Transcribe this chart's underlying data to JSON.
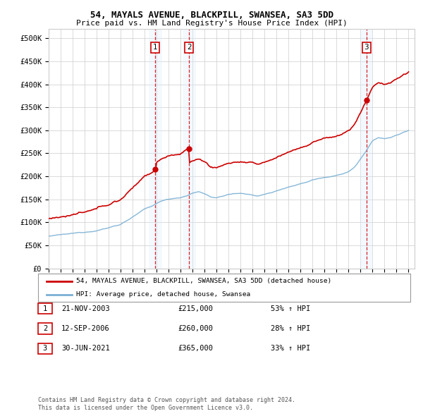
{
  "title": "54, MAYALS AVENUE, BLACKPILL, SWANSEA, SA3 5DD",
  "subtitle": "Price paid vs. HM Land Registry's House Price Index (HPI)",
  "ylim": [
    0,
    520000
  ],
  "ytick_vals": [
    0,
    50000,
    100000,
    150000,
    200000,
    250000,
    300000,
    350000,
    400000,
    450000,
    500000
  ],
  "ytick_labels": [
    "£0",
    "£50K",
    "£100K",
    "£150K",
    "£200K",
    "£250K",
    "£300K",
    "£350K",
    "£400K",
    "£450K",
    "£500K"
  ],
  "sale_dates_decimal": [
    2003.894,
    2006.703,
    2021.496
  ],
  "sale_prices": [
    215000,
    260000,
    365000
  ],
  "sale_labels": [
    "1",
    "2",
    "3"
  ],
  "legend_line1": "54, MAYALS AVENUE, BLACKPILL, SWANSEA, SA3 5DD (detached house)",
  "legend_line2": "HPI: Average price, detached house, Swansea",
  "table_entries": [
    {
      "label": "1",
      "date": "21-NOV-2003",
      "price": "£215,000",
      "pct": "53% ↑ HPI"
    },
    {
      "label": "2",
      "date": "12-SEP-2006",
      "price": "£260,000",
      "pct": "28% ↑ HPI"
    },
    {
      "label": "3",
      "date": "30-JUN-2021",
      "price": "£365,000",
      "pct": "33% ↑ HPI"
    }
  ],
  "footnote1": "Contains HM Land Registry data © Crown copyright and database right 2024.",
  "footnote2": "This data is licensed under the Open Government Licence v3.0.",
  "red_color": "#cc0000",
  "blue_color": "#7ab0d4",
  "shade_color": "#ddeeff",
  "background_color": "#ffffff",
  "grid_color": "#cccccc",
  "hpi_anchor_years": [
    1995.0,
    1996.0,
    1997.0,
    1998.0,
    1999.0,
    2000.0,
    2001.0,
    2002.0,
    2003.0,
    2003.5,
    2004.0,
    2004.5,
    2005.0,
    2005.5,
    2006.0,
    2006.5,
    2007.0,
    2007.5,
    2008.0,
    2008.5,
    2009.0,
    2009.5,
    2010.0,
    2010.5,
    2011.0,
    2011.5,
    2012.0,
    2012.5,
    2013.0,
    2013.5,
    2014.0,
    2014.5,
    2015.0,
    2015.5,
    2016.0,
    2016.5,
    2017.0,
    2017.5,
    2018.0,
    2018.5,
    2019.0,
    2019.5,
    2020.0,
    2020.5,
    2021.0,
    2021.5,
    2022.0,
    2022.5,
    2023.0,
    2023.5,
    2024.0,
    2024.5,
    2025.0
  ],
  "hpi_anchor_vals": [
    70000,
    72000,
    74000,
    77000,
    82000,
    88000,
    96000,
    112000,
    128000,
    133000,
    140000,
    146000,
    150000,
    152000,
    154000,
    157000,
    163000,
    166000,
    162000,
    155000,
    152000,
    155000,
    160000,
    161000,
    162000,
    160000,
    158000,
    157000,
    160000,
    163000,
    167000,
    172000,
    177000,
    180000,
    184000,
    188000,
    193000,
    196000,
    199000,
    201000,
    205000,
    208000,
    212000,
    222000,
    240000,
    258000,
    278000,
    285000,
    283000,
    285000,
    290000,
    295000,
    300000
  ]
}
